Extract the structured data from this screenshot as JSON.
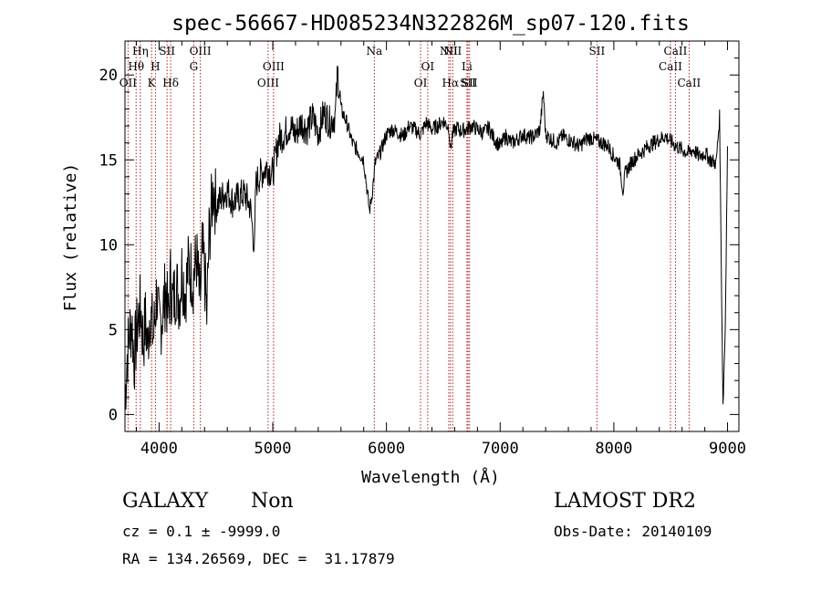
{
  "chart_data": {
    "type": "line",
    "title": "spec-56667-HD085234N322826M_sp07-120.fits",
    "xlabel": "Wavelength (Å)",
    "ylabel": "Flux (relative)",
    "xlim": [
      3700,
      9100
    ],
    "ylim": [
      -1,
      22
    ],
    "x_ticks": [
      4000,
      5000,
      6000,
      7000,
      8000,
      9000
    ],
    "y_ticks": [
      0,
      5,
      10,
      15,
      20
    ],
    "line_color": "#000000",
    "marker_color": "#b22222",
    "grid": false,
    "series": [
      {
        "x": [
          3700,
          3720,
          3740,
          3760,
          3780,
          3800,
          3820,
          3840,
          3860,
          3880,
          3900,
          3920,
          3950,
          3980,
          4000,
          4030,
          4060,
          4080,
          4100,
          4120,
          4150,
          4180,
          4200,
          4230,
          4260,
          4300,
          4330,
          4360,
          4380,
          4400,
          4420,
          4440,
          4460,
          4480,
          4500,
          4550,
          4600,
          4650,
          4700,
          4750,
          4800,
          4840,
          4850,
          4870,
          4900,
          4950,
          5000,
          5050,
          5100,
          5150,
          5200,
          5250,
          5300,
          5350,
          5400,
          5450,
          5500,
          5550,
          5570,
          5600,
          5650,
          5700,
          5750,
          5800,
          5820,
          5850,
          5870,
          5890,
          5900,
          5950,
          6000,
          6050,
          6100,
          6150,
          6200,
          6250,
          6300,
          6350,
          6400,
          6450,
          6500,
          6550,
          6563,
          6580,
          6620,
          6650,
          6700,
          6750,
          6800,
          6850,
          6900,
          6950,
          7000,
          7050,
          7100,
          7150,
          7200,
          7250,
          7300,
          7350,
          7380,
          7400,
          7450,
          7500,
          7550,
          7600,
          7650,
          7700,
          7750,
          7800,
          7850,
          7900,
          7950,
          8000,
          8050,
          8080,
          8100,
          8150,
          8200,
          8250,
          8300,
          8350,
          8400,
          8450,
          8500,
          8550,
          8600,
          8650,
          8700,
          8750,
          8800,
          8850,
          8900,
          8930,
          8960,
          8980,
          9000
        ],
        "y": [
          1.0,
          3.5,
          4.8,
          5.5,
          3.2,
          4.6,
          5.8,
          6.3,
          4.2,
          5.5,
          4.0,
          6.2,
          4.5,
          7.2,
          5.0,
          6.0,
          7.4,
          5.5,
          8.0,
          6.5,
          7.6,
          6.8,
          8.5,
          7.2,
          8.8,
          8.0,
          9.2,
          6.5,
          9.5,
          8.5,
          5.8,
          10.5,
          12.0,
          13.5,
          12.2,
          12.8,
          13.2,
          12.5,
          12.8,
          13.0,
          12.3,
          9.8,
          13.5,
          13.9,
          14.2,
          14.6,
          14.2,
          16.2,
          16.5,
          17.0,
          16.5,
          17.2,
          16.8,
          17.5,
          16.6,
          17.8,
          17.2,
          17.6,
          20.2,
          18.0,
          17.2,
          16.0,
          15.5,
          15.0,
          13.8,
          12.0,
          12.8,
          14.0,
          14.8,
          15.5,
          16.5,
          16.8,
          16.6,
          16.4,
          17.0,
          16.8,
          16.5,
          17.2,
          16.8,
          17.0,
          17.3,
          16.9,
          15.5,
          16.5,
          16.9,
          16.7,
          16.8,
          17.0,
          16.8,
          16.6,
          16.9,
          16.2,
          15.8,
          16.4,
          16.0,
          16.2,
          16.5,
          16.3,
          16.4,
          16.8,
          19.0,
          16.5,
          16.2,
          16.0,
          16.4,
          16.2,
          16.0,
          15.8,
          16.2,
          16.3,
          16.1,
          16.0,
          15.8,
          15.2,
          14.8,
          13.2,
          14.2,
          14.8,
          15.2,
          15.5,
          15.8,
          16.0,
          16.2,
          16.4,
          16.1,
          15.8,
          15.6,
          15.4,
          15.6,
          15.2,
          15.4,
          15.0,
          14.8,
          17.5,
          0.5,
          5.0,
          15.8
        ]
      }
    ],
    "lines": [
      {
        "label": "OII",
        "x": 3727,
        "row": 2
      },
      {
        "label": "Hθ",
        "x": 3798,
        "row": 1
      },
      {
        "label": "Hη",
        "x": 3835,
        "row": 0
      },
      {
        "label": "SII",
        "x": 4070,
        "row": 0
      },
      {
        "label": "K",
        "x": 3934,
        "row": 2
      },
      {
        "label": "H",
        "x": 3968,
        "row": 1
      },
      {
        "label": "Hδ",
        "x": 4102,
        "row": 2
      },
      {
        "label": "G",
        "x": 4305,
        "row": 1
      },
      {
        "label": "OIII",
        "x": 4363,
        "row": 0
      },
      {
        "label": "OIII",
        "x": 4959,
        "row": 2
      },
      {
        "label": "OIII",
        "x": 5007,
        "row": 1
      },
      {
        "label": "Na",
        "x": 5893,
        "row": 0
      },
      {
        "label": "OI",
        "x": 6300,
        "row": 2
      },
      {
        "label": "OI",
        "x": 6363,
        "row": 1
      },
      {
        "label": "NII",
        "x": 6548,
        "row": 0
      },
      {
        "label": "Hα",
        "x": 6563,
        "row": 2
      },
      {
        "label": "NII",
        "x": 6583,
        "row": 0
      },
      {
        "label": "Li",
        "x": 6708,
        "row": 1
      },
      {
        "label": "SII",
        "x": 6717,
        "row": 2
      },
      {
        "label": "SII",
        "x": 6731,
        "row": 2
      },
      {
        "label": "SII",
        "x": 7851,
        "row": 0
      },
      {
        "label": "CaII",
        "x": 8498,
        "row": 1
      },
      {
        "label": "CaII",
        "x": 8542,
        "row": 0
      },
      {
        "label": "CaII",
        "x": 8662,
        "row": 2
      }
    ]
  },
  "info": {
    "class_label": "GALAXY",
    "subclass": "Non",
    "survey": "LAMOST DR2",
    "cz_line": "cz = 0.1 ± -9999.0",
    "obs_date": "Obs-Date: 20140109",
    "coords": "RA = 134.26569, DEC =  31.17879"
  }
}
